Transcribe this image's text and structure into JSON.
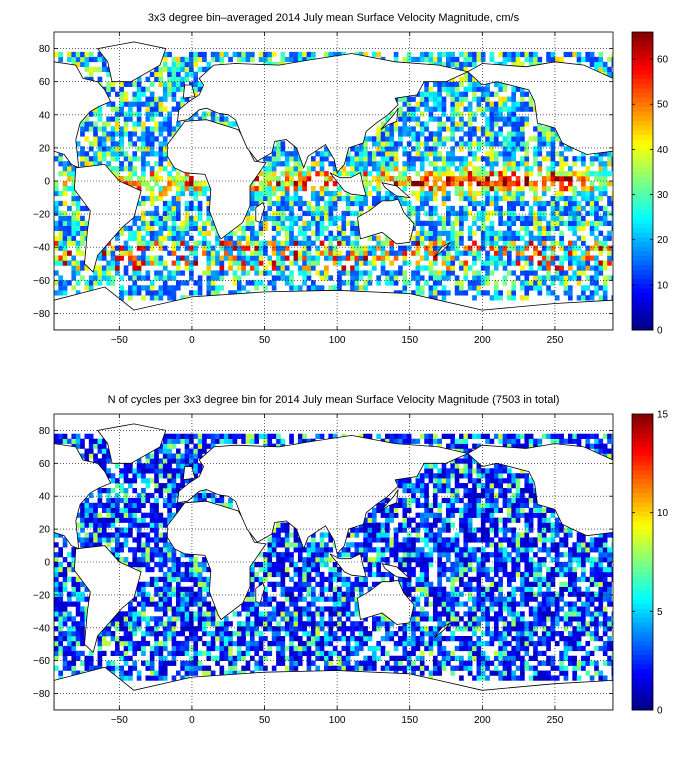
{
  "figure": {
    "background": "#ffffff",
    "land_color": "#ffffff",
    "coast_color": "#000000"
  },
  "chart_data": [
    {
      "type": "heatmap",
      "title": "3x3 degree bin–averaged 2014 July mean Surface Velocity Magnitude, cm/s",
      "xlabel": "",
      "ylabel": "",
      "xlim": [
        -95,
        290
      ],
      "ylim": [
        -90,
        90
      ],
      "xticks": [
        -50,
        0,
        50,
        100,
        150,
        200,
        250
      ],
      "yticks": [
        80,
        60,
        40,
        20,
        0,
        -20,
        -40,
        -60,
        -80
      ],
      "grid": true,
      "bin_size_deg": 3,
      "colorbar": {
        "min": 0,
        "max": 66,
        "ticks": [
          0,
          10,
          20,
          30,
          40,
          50,
          60
        ],
        "colormap": "jet"
      }
    },
    {
      "type": "heatmap",
      "title": "N of cycles per 3x3 degree bin for 2014 July mean Surface Velocity Magnitude (7503 in total)",
      "xlabel": "",
      "ylabel": "",
      "xlim": [
        -95,
        290
      ],
      "ylim": [
        -90,
        90
      ],
      "xticks": [
        -50,
        0,
        50,
        100,
        150,
        200,
        250
      ],
      "yticks": [
        80,
        60,
        40,
        20,
        0,
        -20,
        -40,
        -60,
        -80
      ],
      "grid": true,
      "bin_size_deg": 3,
      "total_cycles": 7503,
      "colorbar": {
        "min": 0,
        "max": 15,
        "ticks": [
          0,
          5,
          10,
          15
        ],
        "colormap": "jet"
      }
    }
  ]
}
